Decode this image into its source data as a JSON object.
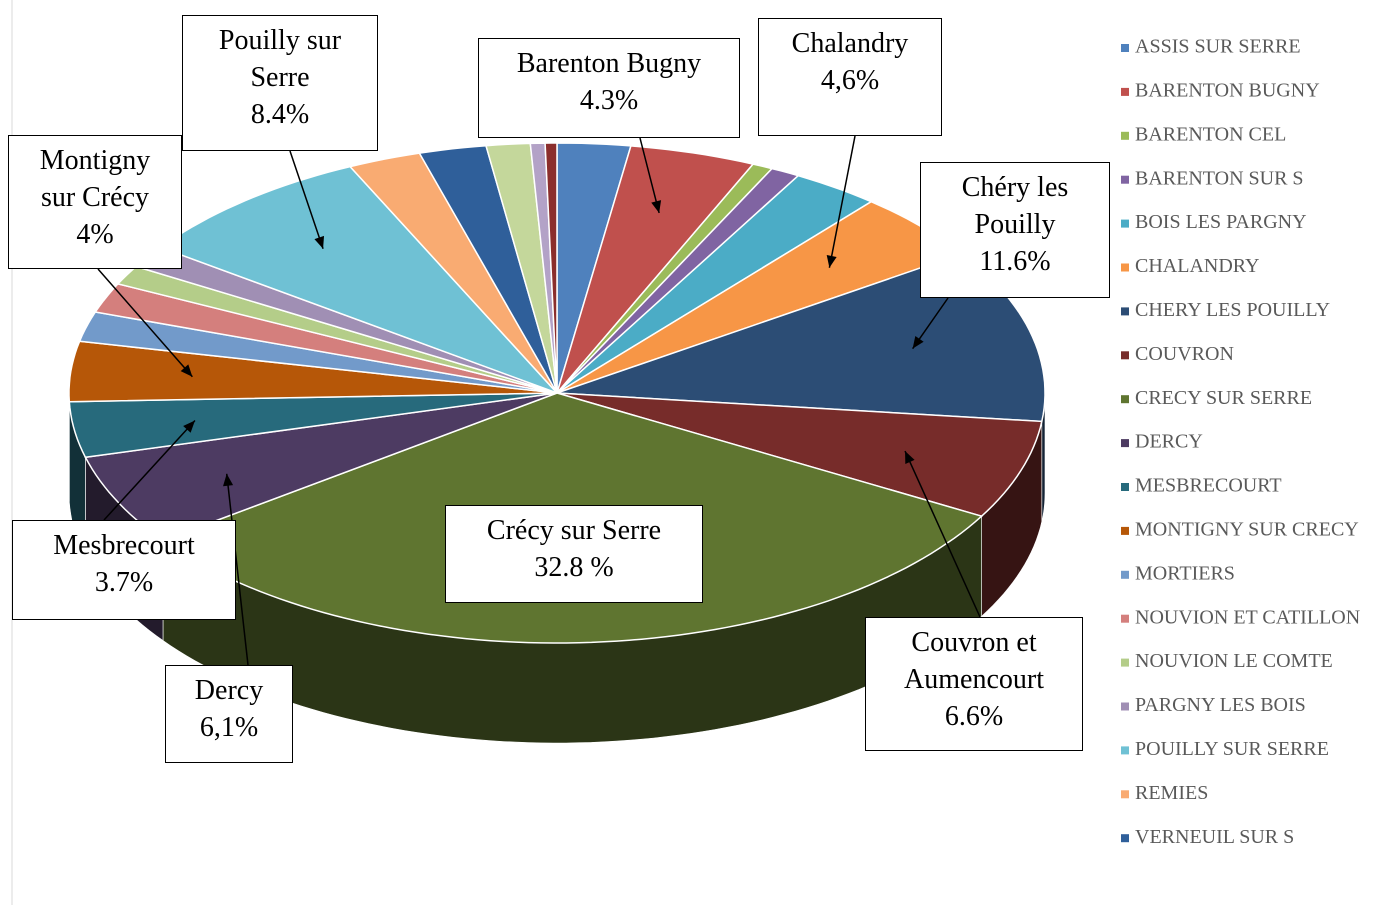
{
  "chart_data": {
    "type": "pie3d",
    "categories": [
      "ASSIS SUR SERRE",
      "BARENTON BUGNY",
      "BARENTON CEL",
      "BARENTON SUR S",
      "BOIS LES PARGNY",
      "CHALANDRY",
      "CHERY LES POUILLY",
      "COUVRON",
      "CRECY SUR SERRE",
      "DERCY",
      "MESBRECOURT",
      "MONTIGNY SUR CRECY",
      "MORTIERS",
      "NOUVION ET CATILLON",
      "NOUVION LE COMTE",
      "PARGNY LES BOIS",
      "POUILLY SUR SERRE",
      "REMIES",
      "VERNEUIL SUR S",
      null,
      null,
      null
    ],
    "values": [
      2.5,
      4.3,
      0.7,
      1.0,
      3.0,
      4.6,
      11.6,
      6.6,
      32.8,
      6.1,
      3.7,
      4,
      2.0,
      2.0,
      1.3,
      1.5,
      8.4,
      2.5,
      2.3,
      1.5,
      0.5,
      0.4
    ],
    "value_labels": [
      null,
      "4.3%",
      null,
      null,
      null,
      "4,6%",
      "11.6%",
      "6.6%",
      "32.8 %",
      "6,1%",
      "3.7%",
      "4%",
      null,
      null,
      null,
      null,
      "8.4%",
      null,
      null,
      null,
      null,
      null
    ],
    "callout_labels": [
      null,
      "Barenton Bugny",
      null,
      null,
      null,
      "Chalandry",
      "Chéry les\nPouilly",
      "Couvron et\nAumencourt",
      "Crécy sur Serre",
      "Dercy",
      "Mesbrecourt",
      "Montigny\nsur Crécy",
      null,
      null,
      null,
      null,
      "Pouilly sur\nSerre",
      null,
      null,
      null,
      null,
      null
    ],
    "colors": [
      "#4f81bd",
      "#c0504d",
      "#9bbb59",
      "#8064a2",
      "#4bacc6",
      "#f79646",
      "#2c4d75",
      "#772c2a",
      "#5f7530",
      "#4d3b62",
      "#276a7c",
      "#b65708",
      "#729aca",
      "#d47f7d",
      "#b4cd89",
      "#a08fb4",
      "#6fc1d4",
      "#f9ab72",
      "#2f5f9a",
      "#c4d79b",
      "#b3a2c7",
      "#8b2e2c"
    ],
    "legend": "right"
  }
}
